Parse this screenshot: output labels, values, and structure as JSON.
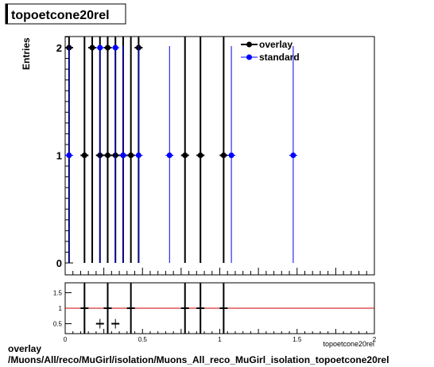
{
  "title": "topoetcone20rel",
  "ylabel": "Entries",
  "xlabel": "topoetcone20rel",
  "legend": [
    {
      "label": "overlay",
      "color": "#000000"
    },
    {
      "label": "standard",
      "color": "#0000ff"
    }
  ],
  "footer": {
    "line1": "overlay",
    "line2": "/Muons/All/reco/MuGirl/isolation/Muons_All_reco_MuGirl_isolation_topoetcone20rel"
  },
  "chart_data": [
    {
      "type": "scatter",
      "title": "topoetcone20rel",
      "ylabel": "Entries",
      "xlim": [
        0,
        2
      ],
      "ylim": [
        0,
        2.1
      ],
      "x_ticks": [
        "0",
        "0.5",
        "1",
        "1.5",
        "2"
      ],
      "y_ticks": [
        "0",
        "1",
        "2"
      ],
      "legend_position": "top-right",
      "series": [
        {
          "name": "overlay",
          "color": "#000000",
          "points": [
            {
              "x": 0.025,
              "y": 2
            },
            {
              "x": 0.125,
              "y": 1
            },
            {
              "x": 0.175,
              "y": 2
            },
            {
              "x": 0.225,
              "y": 1
            },
            {
              "x": 0.275,
              "y": 2
            },
            {
              "x": 0.275,
              "y": 1
            },
            {
              "x": 0.325,
              "y": 1
            },
            {
              "x": 0.375,
              "y": 1
            },
            {
              "x": 0.425,
              "y": 1
            },
            {
              "x": 0.475,
              "y": 2
            },
            {
              "x": 0.775,
              "y": 1
            },
            {
              "x": 0.875,
              "y": 1
            },
            {
              "x": 1.025,
              "y": 1
            }
          ]
        },
        {
          "name": "standard",
          "color": "#0000ff",
          "points": [
            {
              "x": 0.025,
              "y": 1
            },
            {
              "x": 0.225,
              "y": 2
            },
            {
              "x": 0.325,
              "y": 2
            },
            {
              "x": 0.375,
              "y": 1
            },
            {
              "x": 0.475,
              "y": 1
            },
            {
              "x": 0.675,
              "y": 1
            },
            {
              "x": 1.075,
              "y": 1
            },
            {
              "x": 1.475,
              "y": 1
            }
          ]
        }
      ]
    },
    {
      "type": "scatter",
      "xlim": [
        0,
        2
      ],
      "ylim": [
        0.3,
        1.7
      ],
      "x_ticks": [
        "0",
        "0.5",
        "1",
        "1.5",
        "2"
      ],
      "y_ticks": [
        "0.5",
        "1",
        "1.5"
      ],
      "reference_line": {
        "y": 1,
        "color": "#cc0000"
      },
      "ratio_points": [
        {
          "x": 0.125,
          "y": 1
        },
        {
          "x": 0.225,
          "y": 0.5
        },
        {
          "x": 0.275,
          "y": 1
        },
        {
          "x": 0.325,
          "y": 0.5
        },
        {
          "x": 0.425,
          "y": 1
        },
        {
          "x": 0.775,
          "y": 1
        },
        {
          "x": 0.875,
          "y": 1
        },
        {
          "x": 1.025,
          "y": 1
        }
      ],
      "ratio_bars": [
        0.125,
        0.275,
        0.425,
        0.775,
        0.875,
        1.025
      ]
    }
  ]
}
